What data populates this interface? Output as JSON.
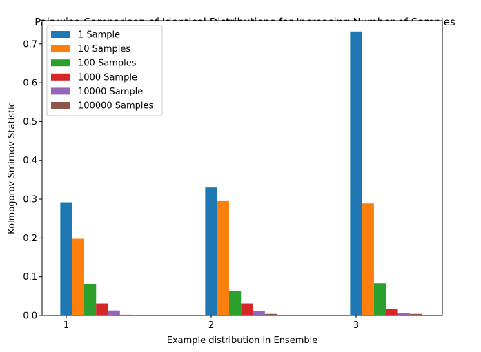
{
  "chart_data": {
    "type": "bar",
    "title": "Pair-wise Comparison of Identical Distributions for Increasing Number of Samples",
    "xlabel": "Example distribution in Ensemble",
    "ylabel": "Kolmogorov-Smirnov Statistic",
    "categories": [
      "1",
      "2",
      "3"
    ],
    "ylim": [
      0,
      0.76
    ],
    "yticks": [
      "0.0",
      "0.1",
      "0.2",
      "0.3",
      "0.4",
      "0.5",
      "0.6",
      "0.7"
    ],
    "legend_position": "top-left",
    "grid": false,
    "series": [
      {
        "name": "1 Sample",
        "color": "#1f77b4",
        "values": [
          0.292,
          0.33,
          0.732
        ]
      },
      {
        "name": "10 Samples",
        "color": "#ff7f0e",
        "values": [
          0.198,
          0.295,
          0.289
        ]
      },
      {
        "name": "100 Samples",
        "color": "#2ca02c",
        "values": [
          0.081,
          0.063,
          0.083
        ]
      },
      {
        "name": "1000 Sample",
        "color": "#d62728",
        "values": [
          0.031,
          0.031,
          0.016
        ]
      },
      {
        "name": "10000 Sample",
        "color": "#9467bd",
        "values": [
          0.013,
          0.011,
          0.007
        ]
      },
      {
        "name": "100000 Samples",
        "color": "#8c564b",
        "values": [
          0.002,
          0.004,
          0.004
        ]
      }
    ]
  }
}
